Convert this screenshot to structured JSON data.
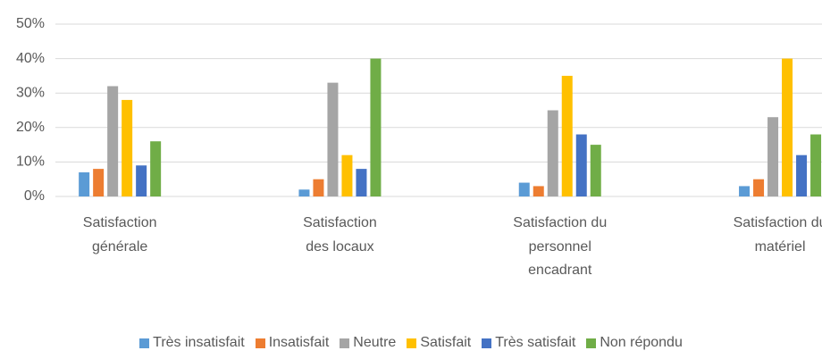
{
  "chart_data": {
    "type": "bar",
    "categories": [
      "Satisfaction générale",
      "Satisfaction des locaux",
      "Satisfaction du personnel encadrant",
      "Satisfaction du matériel"
    ],
    "series": [
      {
        "name": "Très insatisfait",
        "color": "#5b9bd5",
        "values": [
          7,
          2,
          4,
          3
        ]
      },
      {
        "name": "Insatisfait",
        "color": "#ed7d31",
        "values": [
          8,
          5,
          3,
          5
        ]
      },
      {
        "name": "Neutre",
        "color": "#a5a5a5",
        "values": [
          32,
          33,
          25,
          23
        ]
      },
      {
        "name": "Satisfait",
        "color": "#ffc000",
        "values": [
          28,
          12,
          35,
          40
        ]
      },
      {
        "name": "Très satisfait",
        "color": "#4472c4",
        "values": [
          9,
          8,
          18,
          12
        ]
      },
      {
        "name": "Non répondu",
        "color": "#70ad47",
        "values": [
          16,
          40,
          15,
          18
        ]
      }
    ],
    "ylim": [
      0,
      50
    ],
    "yticks": [
      {
        "value": 0,
        "label": "0%"
      },
      {
        "value": 10,
        "label": "10%"
      },
      {
        "value": 20,
        "label": "20%"
      },
      {
        "value": 30,
        "label": "30%"
      },
      {
        "value": 40,
        "label": "40%"
      },
      {
        "value": 50,
        "label": "50%"
      }
    ],
    "grid": true,
    "legend": "bottom"
  }
}
